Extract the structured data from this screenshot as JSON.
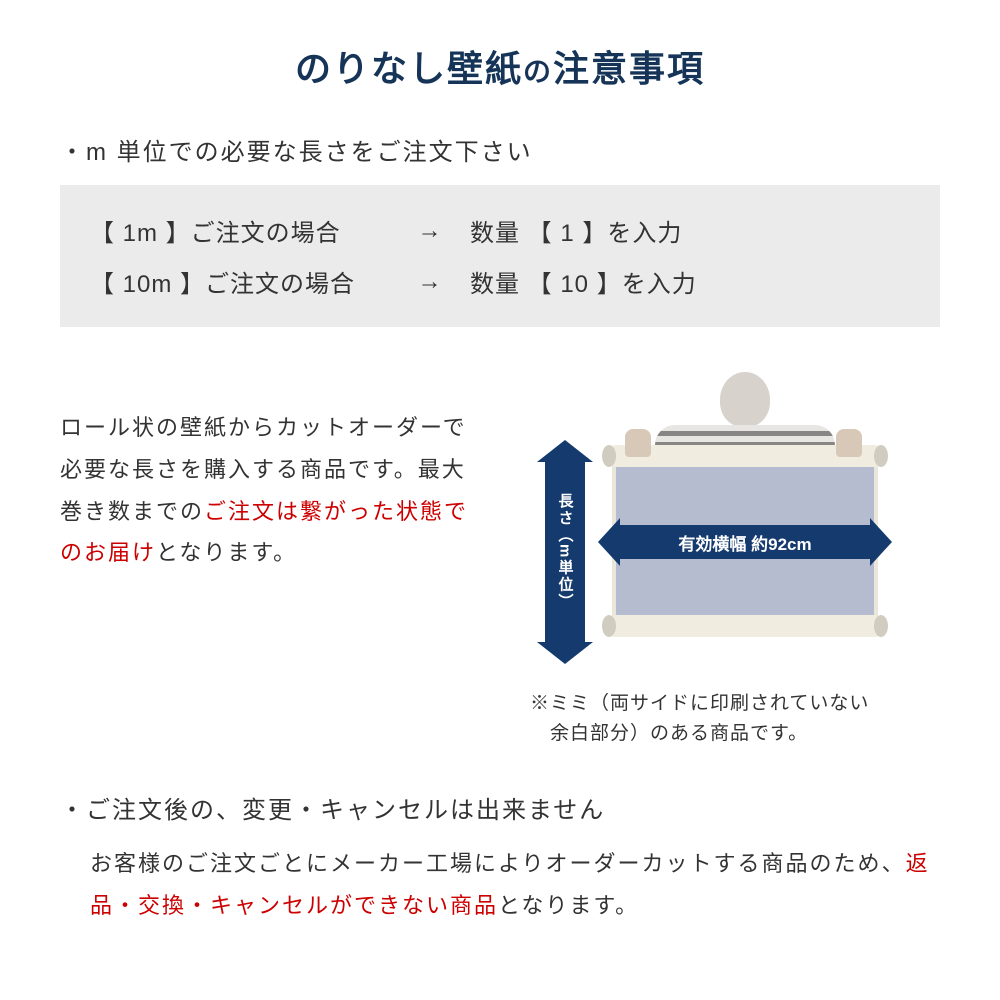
{
  "title_main": "のりなし壁紙",
  "title_connector": "の",
  "title_sub": "注意事項",
  "section1_heading": "・m 単位での必要な長さをご注文下さい",
  "examples": [
    {
      "left": "【 1m 】ご注文の場合",
      "arrow": "→",
      "right": "数量 【 1 】を入力"
    },
    {
      "left": "【 10m 】ご注文の場合",
      "arrow": "→",
      "right": "数量 【 10 】を入力"
    }
  ],
  "mid_para": {
    "p1": "ロール状の壁紙からカットオーダーで必要な長さを購入する商品です。最大巻き数までの",
    "p2_red": "ご注文は繋がった状態でのお届け",
    "p3": "となります。"
  },
  "diagram": {
    "length_label": "長さ（m単位）",
    "width_label": "有効横幅 約92cm"
  },
  "mimi_note_l1": "※ミミ（両サイドに印刷されていない",
  "mimi_note_l2": "　余白部分）のある商品です。",
  "section2_heading": "・ご注文後の、変更・キャンセルは出来ません",
  "cancel_para": {
    "p1": "お客様のご注文ごとにメーカー工場によりオーダーカットする商品のため、",
    "p2_red": "返品・交換・キャンセルができない商品",
    "p3": "となります。"
  },
  "colors": {
    "title": "#153458",
    "arrow_bg": "#153a6e",
    "red": "#cc0000",
    "example_bg": "#ebebeb",
    "paper": "#b6bcd0"
  }
}
